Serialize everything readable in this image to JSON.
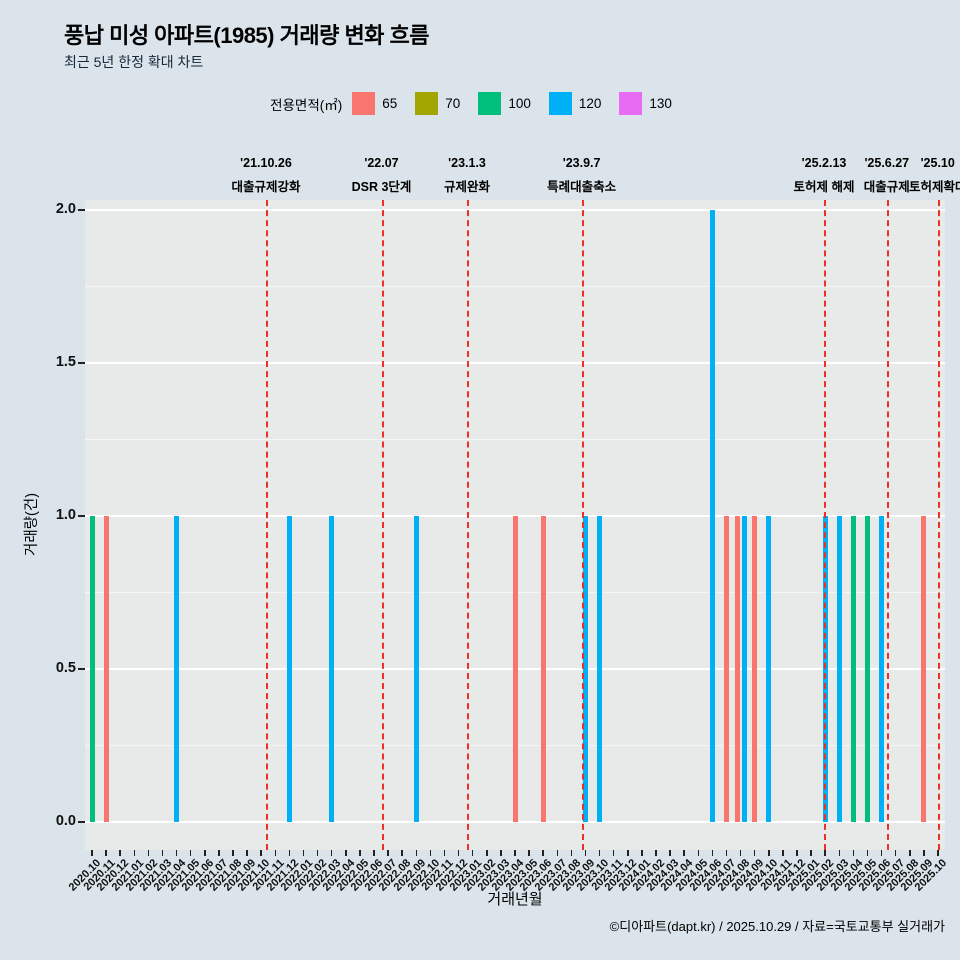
{
  "page": {
    "title": "풍납 미성 아파트(1985) 거래량 변화 흐름",
    "subtitle": "최근 5년 한정 확대 차트",
    "caption": "©디아파트(dapt.kr) / 2025.10.29 / 자료=국토교통부 실거래가"
  },
  "legend": {
    "title": "전용면적(㎡)",
    "items": [
      {
        "label": "65",
        "color": "#f8766d"
      },
      {
        "label": "70",
        "color": "#a3a500"
      },
      {
        "label": "100",
        "color": "#00bf7d"
      },
      {
        "label": "120",
        "color": "#00b0f6"
      },
      {
        "label": "130",
        "color": "#e76bf3"
      }
    ]
  },
  "axes": {
    "y_label": "거래량(건)",
    "x_label": "거래년월",
    "y_ticks": [
      {
        "value": 0,
        "label": "0.0"
      },
      {
        "value": 0.5,
        "label": "0.5"
      },
      {
        "value": 1,
        "label": "1.0"
      },
      {
        "value": 1.5,
        "label": "1.5"
      },
      {
        "value": 2,
        "label": "2.0"
      }
    ]
  },
  "chart_data": {
    "type": "bar",
    "title": "풍납 미성 아파트(1985) 거래량 변화 흐름",
    "subtitle": "최근 5년 한정 확대 차트",
    "xlabel": "거래년월",
    "ylabel": "거래량(건)",
    "ylim": [
      0,
      2
    ],
    "legend_position": "top",
    "grid": true,
    "annotation_color": "#ee3124",
    "panel_color": "#e8e9e9",
    "background_color": "#dae4ea",
    "x": [
      "2020.10",
      "2020.11",
      "2020.12",
      "2021.01",
      "2021.02",
      "2021.03",
      "2021.04",
      "2021.05",
      "2021.06",
      "2021.07",
      "2021.08",
      "2021.09",
      "2021.10",
      "2021.11",
      "2021.12",
      "2022.01",
      "2022.02",
      "2022.03",
      "2022.04",
      "2022.05",
      "2022.06",
      "2022.07",
      "2022.08",
      "2022.09",
      "2022.10",
      "2022.11",
      "2022.12",
      "2023.01",
      "2023.02",
      "2023.03",
      "2023.04",
      "2023.05",
      "2023.06",
      "2023.07",
      "2023.08",
      "2023.09",
      "2023.10",
      "2023.11",
      "2023.12",
      "2024.01",
      "2024.02",
      "2024.03",
      "2024.04",
      "2024.05",
      "2024.06",
      "2024.07",
      "2024.08",
      "2024.09",
      "2024.10",
      "2024.11",
      "2024.12",
      "2025.01",
      "2025.02",
      "2025.03",
      "2025.04",
      "2025.05",
      "2025.06",
      "2025.07",
      "2025.08",
      "2025.09",
      "2025.10"
    ],
    "series_colors": {
      "65": "#f8766d",
      "70": "#a3a500",
      "100": "#00bf7d",
      "120": "#00b0f6",
      "130": "#e76bf3"
    },
    "bars": [
      {
        "month": "2020.10",
        "size": 100,
        "count": 1
      },
      {
        "month": "2020.11",
        "size": 65,
        "count": 1
      },
      {
        "month": "2021.04",
        "size": 120,
        "count": 1
      },
      {
        "month": "2021.12",
        "size": 120,
        "count": 1
      },
      {
        "month": "2022.03",
        "size": 120,
        "count": 1
      },
      {
        "month": "2022.09",
        "size": 120,
        "count": 1
      },
      {
        "month": "2023.04",
        "size": 65,
        "count": 1
      },
      {
        "month": "2023.06",
        "size": 65,
        "count": 1
      },
      {
        "month": "2023.09",
        "size": 120,
        "count": 1
      },
      {
        "month": "2023.10",
        "size": 120,
        "count": 1
      },
      {
        "month": "2024.06",
        "size": 120,
        "count": 2
      },
      {
        "month": "2024.07",
        "size": 65,
        "count": 1
      },
      {
        "month": "2024.08",
        "size": 65,
        "count": 1
      },
      {
        "month": "2024.08",
        "size": 120,
        "count": 1
      },
      {
        "month": "2024.09",
        "size": 65,
        "count": 1
      },
      {
        "month": "2024.10",
        "size": 120,
        "count": 1
      },
      {
        "month": "2025.02",
        "size": 120,
        "count": 1
      },
      {
        "month": "2025.03",
        "size": 120,
        "count": 1
      },
      {
        "month": "2025.04",
        "size": 100,
        "count": 1
      },
      {
        "month": "2025.05",
        "size": 100,
        "count": 1
      },
      {
        "month": "2025.06",
        "size": 120,
        "count": 1
      },
      {
        "month": "2025.09",
        "size": 65,
        "count": 1
      }
    ],
    "annotations": [
      {
        "date": "'21.10.26",
        "label": "대출규제강화",
        "month": "2021.10",
        "day": 26
      },
      {
        "date": "'22.07",
        "label": "DSR 3단계",
        "month": "2022.07",
        "day": 1
      },
      {
        "date": "'23.1.3",
        "label": "규제완화",
        "month": "2023.01",
        "day": 3
      },
      {
        "date": "'23.9.7",
        "label": "특례대출축소",
        "month": "2023.09",
        "day": 7
      },
      {
        "date": "'25.2.13",
        "label": "토허제 해제",
        "month": "2025.02",
        "day": 13
      },
      {
        "date": "'25.6.27",
        "label": "대출규제",
        "month": "2025.06",
        "day": 27
      },
      {
        "date": "'25.10",
        "label": "토허제확대",
        "month": "2025.10",
        "day": 15
      }
    ]
  }
}
